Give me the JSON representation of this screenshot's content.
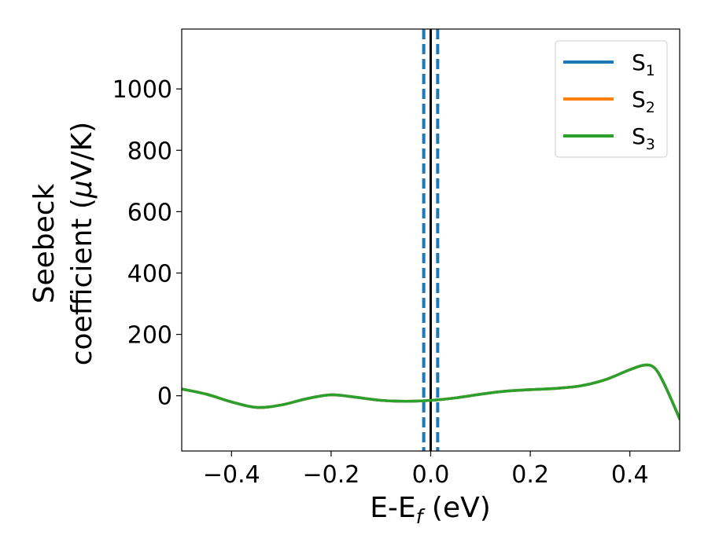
{
  "chart_data": {
    "type": "line",
    "xlabel": "E-E",
    "xlabel_sub": "f",
    "xlabel_unit": " (eV)",
    "ylabel_line1": "Seebeck",
    "ylabel_line2": "coefficient  (",
    "ylabel_mu": "μ",
    "ylabel_unit": "V/K)",
    "xlim": [
      -0.5,
      0.5
    ],
    "ylim": [
      -180,
      1195
    ],
    "xticks": [
      -0.4,
      -0.2,
      0.0,
      0.2,
      0.4
    ],
    "xtick_labels": [
      "−0.4",
      "−0.2",
      "0.0",
      "0.2",
      "0.4"
    ],
    "yticks": [
      0,
      200,
      400,
      600,
      800,
      1000
    ],
    "ytick_labels": [
      "0",
      "200",
      "400",
      "600",
      "800",
      "1000"
    ],
    "legend_position": "top-right",
    "grid": false,
    "vlines": [
      {
        "x": 0.0,
        "color": "#000000",
        "style": "solid"
      },
      {
        "x": -0.014,
        "color": "#1f77b4",
        "style": "dashed"
      },
      {
        "x": 0.014,
        "color": "#1f77b4",
        "style": "dashed"
      }
    ],
    "series": [
      {
        "name": "S",
        "sub": "1",
        "color": "#1f77b4",
        "x": [
          -0.5,
          -0.45,
          -0.4,
          -0.35,
          -0.3,
          -0.25,
          -0.2,
          -0.15,
          -0.1,
          -0.05,
          0.0,
          0.05,
          0.1,
          0.15,
          0.2,
          0.25,
          0.3,
          0.35,
          0.4,
          0.43,
          0.45,
          0.47,
          0.5
        ],
        "y": [
          22,
          5,
          -20,
          -38,
          -30,
          -10,
          3,
          -5,
          -15,
          -18,
          -15,
          -7,
          5,
          15,
          20,
          24,
          32,
          52,
          85,
          100,
          90,
          35,
          -75
        ]
      },
      {
        "name": "S",
        "sub": "2",
        "color": "#ff7f0e",
        "x": [
          -0.5,
          -0.45,
          -0.4,
          -0.35,
          -0.3,
          -0.25,
          -0.2,
          -0.15,
          -0.1,
          -0.05,
          0.0,
          0.05,
          0.1,
          0.15,
          0.2,
          0.25,
          0.3,
          0.35,
          0.4,
          0.43,
          0.45,
          0.47,
          0.5
        ],
        "y": [
          22,
          5,
          -20,
          -38,
          -30,
          -10,
          3,
          -5,
          -15,
          -18,
          -15,
          -7,
          5,
          15,
          20,
          24,
          32,
          52,
          85,
          100,
          90,
          35,
          -75
        ]
      },
      {
        "name": "S",
        "sub": "3",
        "color": "#2ca02c",
        "x": [
          -0.5,
          -0.45,
          -0.4,
          -0.35,
          -0.3,
          -0.25,
          -0.2,
          -0.15,
          -0.1,
          -0.05,
          0.0,
          0.05,
          0.1,
          0.15,
          0.2,
          0.25,
          0.3,
          0.35,
          0.4,
          0.43,
          0.45,
          0.47,
          0.5
        ],
        "y": [
          22,
          5,
          -20,
          -38,
          -30,
          -10,
          3,
          -5,
          -15,
          -18,
          -15,
          -7,
          5,
          15,
          20,
          24,
          32,
          52,
          85,
          100,
          90,
          35,
          -75
        ]
      }
    ]
  }
}
